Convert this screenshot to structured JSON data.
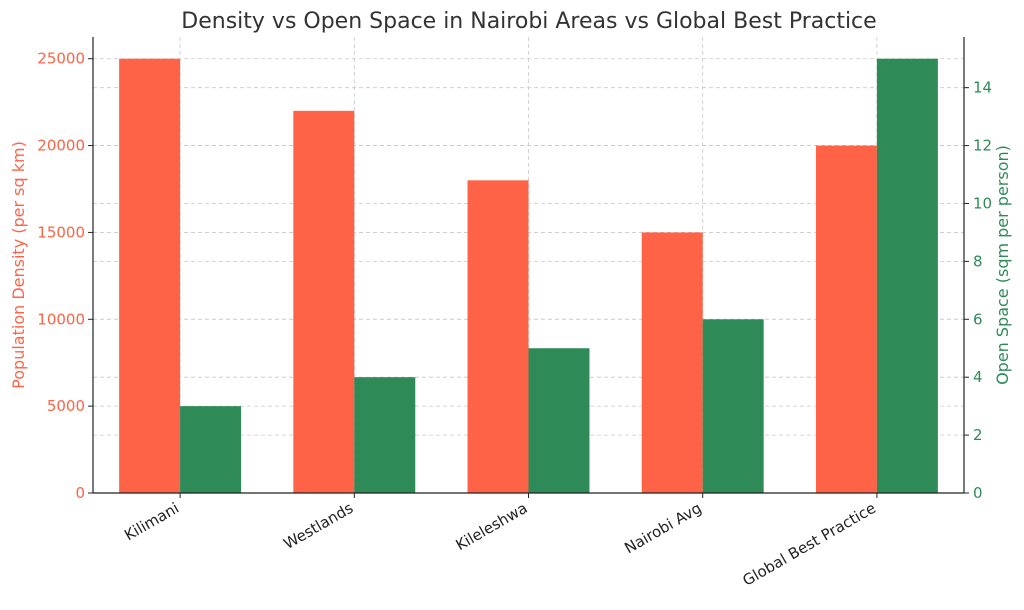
{
  "chart_data": {
    "type": "bar",
    "title": "Density vs Open Space in Nairobi Areas vs Global Best Practice",
    "categories": [
      "Kilimani",
      "Westlands",
      "Kileleshwa",
      "Nairobi Avg",
      "Global Best Practice"
    ],
    "series": [
      {
        "name": "Population Density (per sq km)",
        "axis": "left",
        "color": "#ff6347",
        "values": [
          25000,
          22000,
          18000,
          15000,
          20000
        ]
      },
      {
        "name": "Open Space (sqm per person)",
        "axis": "right",
        "color": "#2e8b57",
        "values": [
          3,
          4,
          5,
          6,
          15
        ]
      }
    ],
    "ylabel_left": "Population Density (per sq km)",
    "ylabel_right": "Open Space (sqm per person)",
    "ylim_left": [
      0,
      26250
    ],
    "ylim_right": [
      0,
      15.75
    ],
    "yticks_left": [
      "0",
      "5000",
      "10000",
      "15000",
      "20000",
      "25000"
    ],
    "yticks_right": [
      "0",
      "2",
      "4",
      "6",
      "8",
      "10",
      "12",
      "14"
    ],
    "grid": true
  }
}
